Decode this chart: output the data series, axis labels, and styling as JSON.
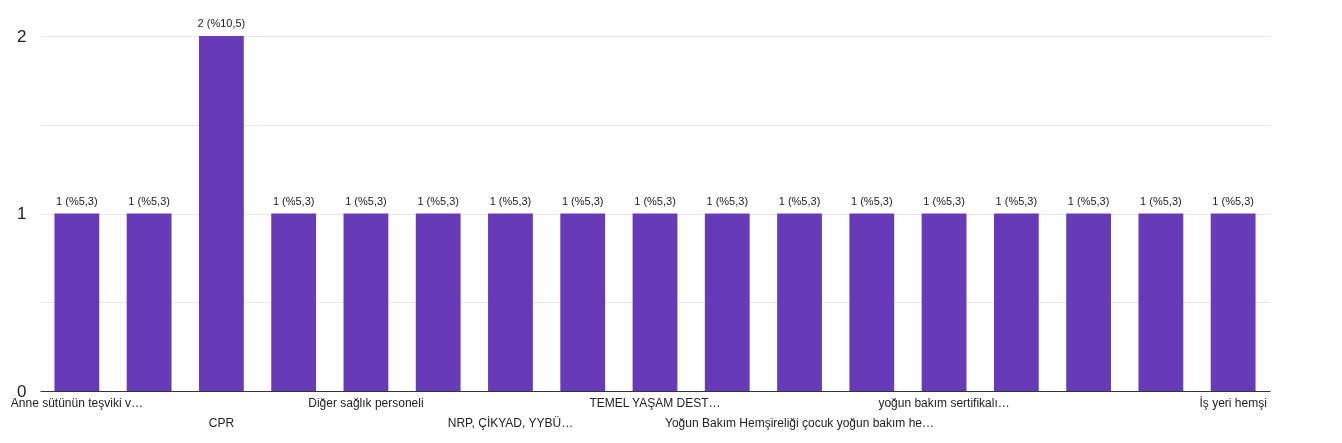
{
  "chart_data": {
    "type": "bar",
    "categories": [
      "Anne sütünün teşviki v…",
      null,
      "CPR",
      null,
      "Diğer sağlık personeli",
      null,
      "NRP, ÇİKYAD, YYBÜ…",
      null,
      "TEMEL YAŞAM DEST…",
      null,
      "Yoğun Bakım Hemşireliği çocuk yoğun bakım he…",
      null,
      "yoğun bakım sertifikalı…",
      null,
      null,
      null,
      "İş yeri hemşi"
    ],
    "values": [
      1,
      1,
      2,
      1,
      1,
      1,
      1,
      1,
      1,
      1,
      1,
      1,
      1,
      1,
      1,
      1,
      1
    ],
    "value_labels": [
      "1 (%5,3)",
      "1 (%5,3)",
      "2 (%10,5)",
      "1 (%5,3)",
      "1 (%5,3)",
      "1 (%5,3)",
      "1 (%5,3)",
      "1 (%5,3)",
      "1 (%5,3)",
      "1 (%5,3)",
      "1 (%5,3)",
      "1 (%5,3)",
      "1 (%5,3)",
      "1 (%5,3)",
      "1 (%5,3)",
      "1 (%5,3)",
      "1 (%5,3)"
    ],
    "color": "#673ab7",
    "ylim": [
      0,
      2
    ],
    "yticks": [
      0,
      {
        "value": 0.5,
        "label": null
      },
      1,
      {
        "value": 1.5,
        "label": null
      },
      2
    ],
    "grid": true
  }
}
